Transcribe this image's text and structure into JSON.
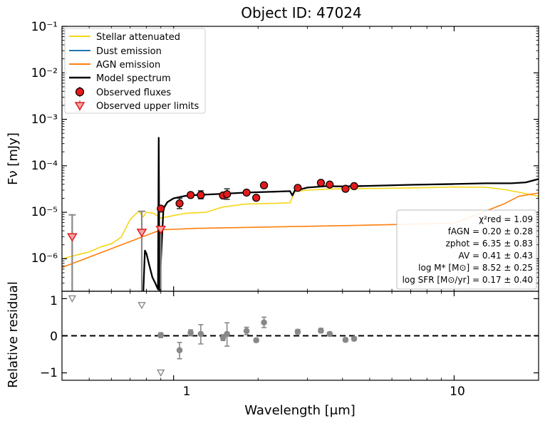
{
  "chart_data": {
    "type": "line",
    "title": "Object ID: 47024",
    "xlabel": "Wavelength [μm]",
    "ylabel": "Fν [mJy]",
    "xscale": "log",
    "yscale": "log",
    "xlim": [
      0.4,
      20
    ],
    "ylim": [
      2e-07,
      0.1
    ],
    "x_tick_labels": [
      "1",
      "10"
    ],
    "y_tick_labels": [
      "10⁻¹",
      "10⁻²",
      "10⁻³",
      "10⁻⁴",
      "10⁻⁵",
      "10⁻⁶"
    ],
    "legend": {
      "position": "top-left",
      "entries": [
        {
          "label": "Stellar attenuated",
          "color": "#f5d616",
          "kind": "line"
        },
        {
          "label": "Dust emission",
          "color": "#1f77b4",
          "kind": "line"
        },
        {
          "label": "AGN emission",
          "color": "#ff7f0e",
          "kind": "line"
        },
        {
          "label": "Model spectrum",
          "color": "#000000",
          "kind": "line"
        },
        {
          "label": "Observed fluxes",
          "color": "#e41a1c",
          "kind": "marker"
        },
        {
          "label": "Observed upper limits",
          "color": "#e41a1c",
          "kind": "triangle"
        }
      ]
    },
    "fit_parameters": [
      "χ²red = 1.09",
      "fAGN = 0.20 ± 0.28",
      "zphot = 6.35 ± 0.83",
      "AV = 0.41 ± 0.43",
      "log M* [M⊙] = 8.52 ± 0.25",
      "log SFR [M⊙/yr] = 0.17 ± 0.40"
    ],
    "series": [
      {
        "name": "Observed fluxes",
        "points": [
          {
            "x": 0.9,
            "y": 1.2e-05,
            "lo": 1.05e-05,
            "hi": 1.35e-05
          },
          {
            "x": 1.05,
            "y": 1.55e-05,
            "lo": 1.2e-05,
            "hi": 2e-05
          },
          {
            "x": 1.15,
            "y": 2.35e-05,
            "lo": 2.15e-05,
            "hi": 2.6e-05
          },
          {
            "x": 1.25,
            "y": 2.35e-05,
            "lo": 1.95e-05,
            "hi": 2.9e-05
          },
          {
            "x": 1.5,
            "y": 2.3e-05,
            "lo": 2.1e-05,
            "hi": 2.5e-05
          },
          {
            "x": 1.55,
            "y": 2.45e-05,
            "lo": 1.9e-05,
            "hi": 3.2e-05
          },
          {
            "x": 1.82,
            "y": 2.65e-05,
            "lo": 2.4e-05,
            "hi": 2.9e-05
          },
          {
            "x": 1.97,
            "y": 2.05e-05,
            "lo": 1.95e-05,
            "hi": 2.15e-05
          },
          {
            "x": 2.1,
            "y": 3.8e-05,
            "lo": 3.5e-05,
            "hi": 4.2e-05
          },
          {
            "x": 2.77,
            "y": 3.35e-05,
            "lo": 3.2e-05,
            "hi": 3.5e-05
          },
          {
            "x": 3.35,
            "y": 4.3e-05,
            "lo": 4.1e-05,
            "hi": 4.5e-05
          },
          {
            "x": 3.6,
            "y": 3.95e-05,
            "lo": 3.8e-05,
            "hi": 4.1e-05
          },
          {
            "x": 4.1,
            "y": 3.2e-05,
            "lo": 3.1e-05,
            "hi": 3.3e-05
          },
          {
            "x": 4.4,
            "y": 3.65e-05,
            "lo": 3.5e-05,
            "hi": 3.8e-05
          }
        ]
      },
      {
        "name": "Observed upper limits",
        "points": [
          {
            "x": 0.435,
            "y": 2.9e-06,
            "hi": 8.8e-06
          },
          {
            "x": 0.77,
            "y": 3.6e-06,
            "hi": 1.05e-05
          },
          {
            "x": 0.9,
            "y": 4.2e-06,
            "hi": 4.3e-06
          }
        ]
      },
      {
        "name": "Model spectrum",
        "points": [
          [
            0.78,
            2e-07
          ],
          [
            0.79,
            1.5e-06
          ],
          [
            0.8,
            1.3e-06
          ],
          [
            0.82,
            7e-07
          ],
          [
            0.84,
            4e-07
          ],
          [
            0.86,
            3e-07
          ],
          [
            0.88,
            2.2e-07
          ],
          [
            0.885,
            0.0004
          ],
          [
            0.89,
            2e-07
          ],
          [
            0.92,
            1.2e-05
          ],
          [
            0.95,
            1.65e-05
          ],
          [
            1.0,
            2e-05
          ],
          [
            1.1,
            2.25e-05
          ],
          [
            1.2,
            2.35e-05
          ],
          [
            1.5,
            2.5e-05
          ],
          [
            1.8,
            2.65e-05
          ],
          [
            2.0,
            2.7e-05
          ],
          [
            2.4,
            2.8e-05
          ],
          [
            2.6,
            2.85e-05
          ],
          [
            2.65,
            2.3e-05
          ],
          [
            2.7,
            2.9e-05
          ],
          [
            3.0,
            3.4e-05
          ],
          [
            3.5,
            3.65e-05
          ],
          [
            4.0,
            3.6e-05
          ],
          [
            5.0,
            3.7e-05
          ],
          [
            7.0,
            3.9e-05
          ],
          [
            10.0,
            4.05e-05
          ],
          [
            13.0,
            4.2e-05
          ],
          [
            16.0,
            4.2e-05
          ],
          [
            18.0,
            4.4e-05
          ],
          [
            20.0,
            5.2e-05
          ]
        ]
      },
      {
        "name": "Stellar attenuated",
        "points": [
          [
            0.4,
            1e-06
          ],
          [
            0.45,
            1.2e-06
          ],
          [
            0.5,
            1.4e-06
          ],
          [
            0.55,
            1.8e-06
          ],
          [
            0.6,
            2.1e-06
          ],
          [
            0.65,
            2.9e-06
          ],
          [
            0.7,
            7e-06
          ],
          [
            0.75,
            1.05e-05
          ],
          [
            0.78,
            8e-06
          ],
          [
            0.8,
            1e-05
          ],
          [
            0.85,
            9.5e-06
          ],
          [
            0.9,
            7.5e-06
          ],
          [
            1.0,
            8.5e-06
          ],
          [
            1.1,
            9.5e-06
          ],
          [
            1.3,
            1e-05
          ],
          [
            1.5,
            1.3e-05
          ],
          [
            1.8,
            1.5e-05
          ],
          [
            2.2,
            1.55e-05
          ],
          [
            2.6,
            1.6e-05
          ],
          [
            2.7,
            2.8e-05
          ],
          [
            3.0,
            3e-05
          ],
          [
            3.5,
            3.15e-05
          ],
          [
            4.0,
            3.2e-05
          ],
          [
            6.0,
            3.3e-05
          ],
          [
            8.0,
            3.4e-05
          ],
          [
            10.0,
            3.5e-05
          ],
          [
            13.0,
            3.45e-05
          ],
          [
            15.0,
            3.1e-05
          ],
          [
            17.0,
            2.7e-05
          ],
          [
            20.0,
            2.2e-05
          ]
        ]
      },
      {
        "name": "AGN emission",
        "points": [
          [
            0.4,
            6.5e-07
          ],
          [
            0.9,
            4.2e-06
          ],
          [
            1.2,
            4.5e-06
          ],
          [
            5.0,
            5.3e-06
          ],
          [
            10.0,
            5.8e-06
          ],
          [
            15.0,
            1.5e-05
          ],
          [
            17.0,
            2.2e-05
          ],
          [
            20.0,
            2.6e-05
          ]
        ]
      }
    ],
    "residual_panel": {
      "ylabel": "Relative residual",
      "ylim": [
        -1.2,
        1.2
      ],
      "y_tick_labels": [
        "1",
        "0",
        "−1"
      ],
      "points": [
        {
          "x": 0.9,
          "y": 0.02,
          "lo": -0.05,
          "hi": 0.08
        },
        {
          "x": 1.05,
          "y": -0.39,
          "lo": -0.62,
          "hi": -0.18
        },
        {
          "x": 1.15,
          "y": 0.08,
          "lo": 0.0,
          "hi": 0.16
        },
        {
          "x": 1.25,
          "y": 0.05,
          "lo": -0.22,
          "hi": 0.3
        },
        {
          "x": 1.5,
          "y": -0.05,
          "lo": -0.13,
          "hi": 0.03
        },
        {
          "x": 1.55,
          "y": 0.05,
          "lo": -0.28,
          "hi": 0.35
        },
        {
          "x": 1.82,
          "y": 0.13,
          "lo": 0.03,
          "hi": 0.23
        },
        {
          "x": 1.97,
          "y": -0.12,
          "lo": -0.17,
          "hi": -0.07
        },
        {
          "x": 2.1,
          "y": 0.36,
          "lo": 0.22,
          "hi": 0.5
        },
        {
          "x": 2.77,
          "y": 0.11,
          "lo": 0.05,
          "hi": 0.17
        },
        {
          "x": 3.35,
          "y": 0.14,
          "lo": 0.08,
          "hi": 0.2
        },
        {
          "x": 3.6,
          "y": 0.05,
          "lo": 0.0,
          "hi": 0.1
        },
        {
          "x": 4.1,
          "y": -0.11,
          "lo": -0.16,
          "hi": -0.06
        },
        {
          "x": 4.4,
          "y": -0.08,
          "lo": -0.13,
          "hi": -0.03
        }
      ],
      "upper_limits": [
        {
          "x": 0.435,
          "y": 1.0
        },
        {
          "x": 0.77,
          "y": 0.82
        },
        {
          "x": 0.9,
          "y": -1.0
        }
      ]
    }
  }
}
